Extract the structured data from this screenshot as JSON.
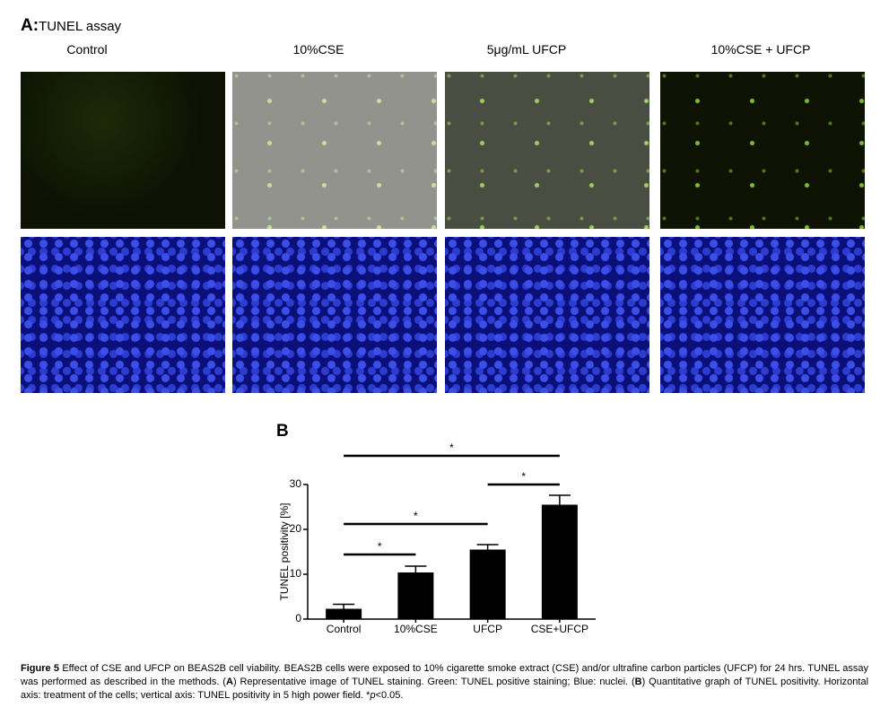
{
  "panel_a": {
    "label": "A:",
    "title": "TUNEL assay",
    "columns": [
      "Control",
      "10%CSE",
      "5μg/mL UFCP",
      "10%CSE + UFCP"
    ]
  },
  "chart_data": {
    "type": "bar",
    "panel_label": "B",
    "ylabel": "TUNEL positivity [%]",
    "categories": [
      "Control",
      "10%CSE",
      "UFCP",
      "CSE+UFCP"
    ],
    "values": [
      2.3,
      10.4,
      15.5,
      25.5
    ],
    "errors": [
      1.0,
      1.4,
      1.1,
      2.1
    ],
    "ylim": [
      0,
      30
    ],
    "yticks": [
      0,
      10,
      20,
      30
    ],
    "color": "#000000",
    "significance": [
      {
        "from": "Control",
        "to": "CSE+UFCP",
        "label": "*"
      },
      {
        "from": "UFCP",
        "to": "CSE+UFCP",
        "label": "*"
      },
      {
        "from": "Control",
        "to": "UFCP",
        "label": "*"
      },
      {
        "from": "Control",
        "to": "10%CSE",
        "label": "*"
      }
    ]
  },
  "caption": {
    "label": "Figure 5",
    "parts": [
      " Effect of CSE and UFCP on BEAS2B cell viability. BEAS2B cells were exposed to 10% cigarette smoke extract (CSE) and/or ultrafine carbon particles (UFCP) for 24 hrs. TUNEL assay was performed as described in the methods. (",
      "A",
      ") Representative image of TUNEL staining. Green: TUNEL positive staining; Blue: nuclei. (",
      "B",
      ") Quantitative graph of TUNEL positivity. Horizontal axis: treatment of the cells; vertical axis: TUNEL positivity in 5 high power field. *",
      "p",
      "<0.05."
    ]
  }
}
